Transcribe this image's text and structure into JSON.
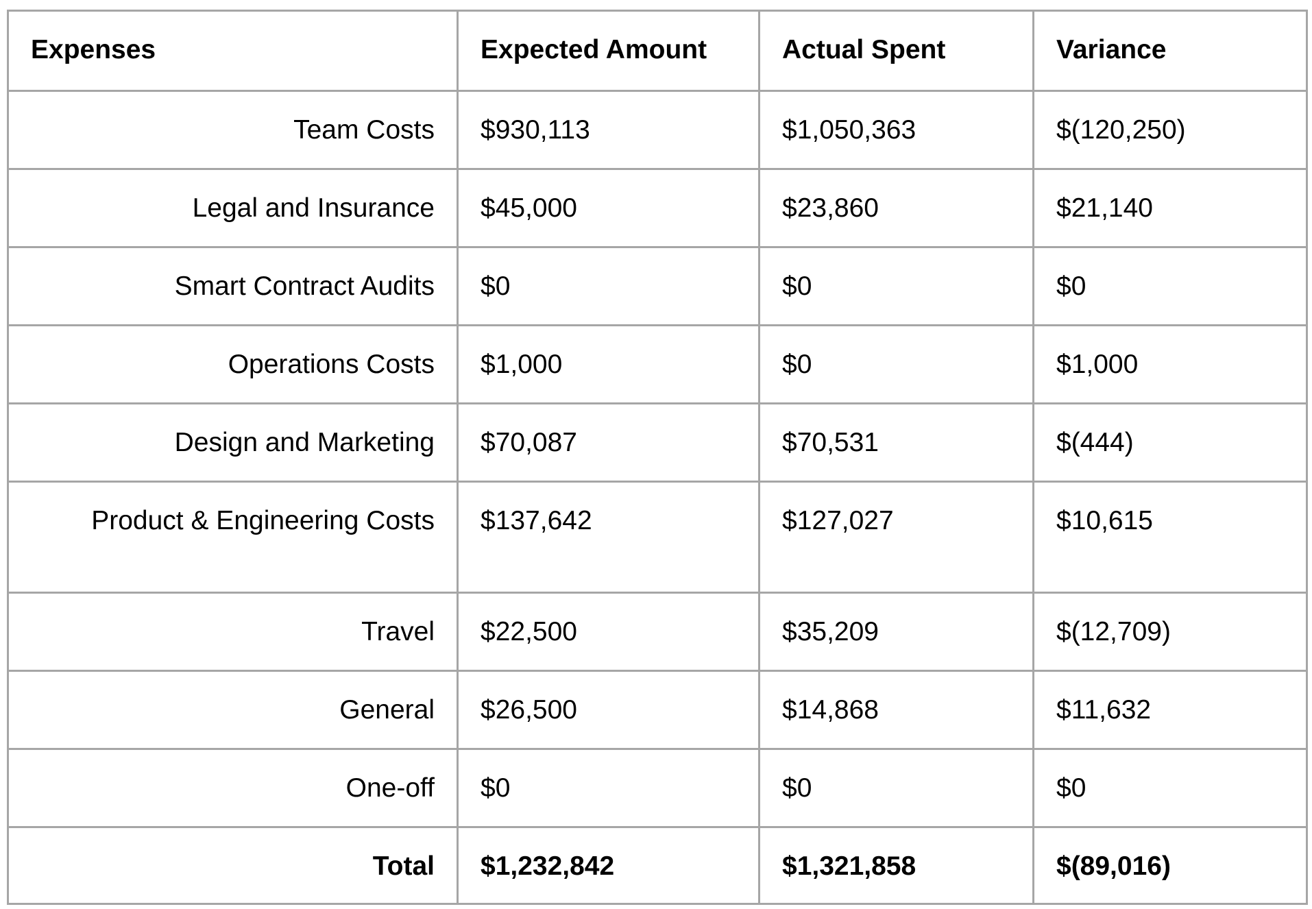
{
  "table": {
    "headers": [
      "Expenses",
      "Expected Amount",
      "Actual Spent",
      "Variance"
    ],
    "rows": [
      {
        "label": "Team Costs",
        "expected": "$930,113",
        "actual": "$1,050,363",
        "variance": "$(120,250)"
      },
      {
        "label": "Legal and Insurance",
        "expected": "$45,000",
        "actual": "$23,860",
        "variance": "$21,140"
      },
      {
        "label": "Smart Contract Audits",
        "expected": "$0",
        "actual": "$0",
        "variance": "$0"
      },
      {
        "label": "Operations Costs",
        "expected": "$1,000",
        "actual": "$0",
        "variance": "$1,000"
      },
      {
        "label": "Design and Marketing",
        "expected": "$70,087",
        "actual": "$70,531",
        "variance": "$(444)"
      },
      {
        "label": "Product & Engineering Costs",
        "expected": "$137,642",
        "actual": "$127,027",
        "variance": "$10,615"
      },
      {
        "label": "Travel",
        "expected": "$22,500",
        "actual": "$35,209",
        "variance": "$(12,709)"
      },
      {
        "label": "General",
        "expected": "$26,500",
        "actual": "$14,868",
        "variance": "$11,632"
      },
      {
        "label": "One-off",
        "expected": "$0",
        "actual": "$0",
        "variance": "$0"
      }
    ],
    "total": {
      "label": "Total",
      "expected": "$1,232,842",
      "actual": "$1,321,858",
      "variance": "$(89,016)"
    }
  },
  "colors": {
    "border": "#a6a6a6",
    "text": "#000000",
    "background": "#ffffff"
  }
}
